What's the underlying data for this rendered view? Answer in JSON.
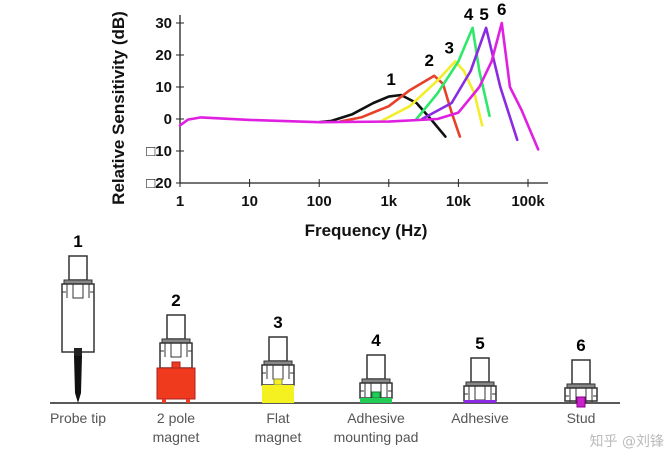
{
  "chart_data": {
    "type": "line",
    "xlabel": "Frequency (Hz)",
    "ylabel": "Relative Sensitivity (dB)",
    "xscale": "log",
    "xlim": [
      1,
      150000
    ],
    "ylim": [
      -20,
      35
    ],
    "x_ticks": [
      {
        "v": 1,
        "label": "1"
      },
      {
        "v": 10,
        "label": "10"
      },
      {
        "v": 100,
        "label": "100"
      },
      {
        "v": 1000,
        "label": "1k"
      },
      {
        "v": 10000,
        "label": "10k"
      },
      {
        "v": 100000,
        "label": "100k"
      }
    ],
    "y_ticks": [
      {
        "v": 30,
        "label": "30"
      },
      {
        "v": 20,
        "label": "20"
      },
      {
        "v": 10,
        "label": "10"
      },
      {
        "v": 0,
        "label": "0"
      },
      {
        "v": -10,
        "label": "□10"
      },
      {
        "v": -20,
        "label": "□20"
      }
    ],
    "grid": false,
    "series": [
      {
        "label": "1",
        "color": "#111111",
        "points": [
          [
            100,
            -1
          ],
          [
            150,
            -0.6
          ],
          [
            300,
            1.5
          ],
          [
            600,
            5
          ],
          [
            1000,
            7
          ],
          [
            1500,
            7.5
          ],
          [
            2500,
            5
          ],
          [
            4000,
            0
          ],
          [
            6500,
            -5.5
          ]
        ]
      },
      {
        "label": "2",
        "color": "#e8412a",
        "points": [
          [
            200,
            -0.8
          ],
          [
            400,
            0.5
          ],
          [
            1000,
            4
          ],
          [
            2000,
            9
          ],
          [
            4500,
            13.5
          ],
          [
            6000,
            11
          ],
          [
            8000,
            2
          ],
          [
            10500,
            -5.5
          ]
        ]
      },
      {
        "label": "3",
        "color": "#f2ee2a",
        "points": [
          [
            800,
            -0.5
          ],
          [
            2000,
            4
          ],
          [
            5000,
            12
          ],
          [
            9000,
            18
          ],
          [
            12000,
            15
          ],
          [
            17000,
            8
          ],
          [
            22000,
            -2
          ]
        ]
      },
      {
        "label": "4",
        "color": "#2ee86a",
        "points": [
          [
            2500,
            0
          ],
          [
            5000,
            8
          ],
          [
            10000,
            18
          ],
          [
            16000,
            28.5
          ],
          [
            20000,
            15
          ],
          [
            28000,
            1
          ]
        ]
      },
      {
        "label": "5",
        "color": "#8a2be2",
        "points": [
          [
            3000,
            0
          ],
          [
            8000,
            5
          ],
          [
            15000,
            15
          ],
          [
            25000,
            28.5
          ],
          [
            40000,
            10
          ],
          [
            70000,
            -6.5
          ]
        ]
      },
      {
        "label": "6",
        "color": "#e020e0",
        "points": [
          [
            1,
            -2
          ],
          [
            1.3,
            -0.2
          ],
          [
            2,
            0.5
          ],
          [
            10,
            -0.3
          ],
          [
            100,
            -1
          ],
          [
            1000,
            -0.8
          ],
          [
            5000,
            0
          ],
          [
            10000,
            2
          ],
          [
            20000,
            10
          ],
          [
            30000,
            18
          ],
          [
            42000,
            30
          ],
          [
            55000,
            10
          ],
          [
            80000,
            3
          ],
          [
            140000,
            -9.5
          ]
        ]
      }
    ]
  },
  "mounts": [
    {
      "number": "1",
      "label": [
        "Probe tip"
      ],
      "type": "probe",
      "color": "#111111"
    },
    {
      "number": "2",
      "label": [
        "2 pole",
        "magnet"
      ],
      "type": "pole-magnet",
      "color": "#f03a1e"
    },
    {
      "number": "3",
      "label": [
        "Flat",
        "magnet"
      ],
      "type": "flat-magnet",
      "color": "#f5f020"
    },
    {
      "number": "4",
      "label": [
        "Adhesive",
        "mounting pad"
      ],
      "type": "pad",
      "color": "#22cc55"
    },
    {
      "number": "5",
      "label": [
        "Adhesive"
      ],
      "type": "adhesive",
      "color": "#8a2be2"
    },
    {
      "number": "6",
      "label": [
        "Stud"
      ],
      "type": "stud",
      "color": "#cc22cc"
    }
  ],
  "watermark": "知乎 @刘锋"
}
